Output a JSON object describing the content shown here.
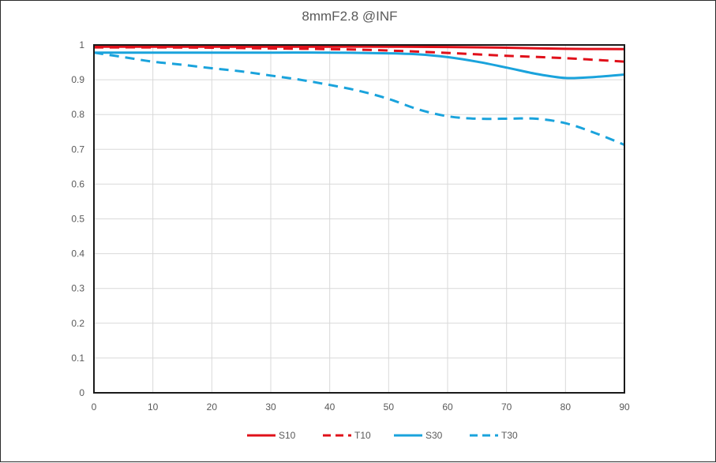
{
  "chart_data": {
    "type": "line",
    "title": "8mmF2.8 @INF",
    "xlabel": "",
    "ylabel": "",
    "xlim": [
      0,
      90
    ],
    "ylim": [
      0,
      1
    ],
    "xticks": [
      0,
      10,
      20,
      30,
      40,
      50,
      60,
      70,
      80,
      90
    ],
    "xtick_labels": [
      "0",
      "10",
      "20",
      "30",
      "40",
      "50",
      "60",
      "70",
      "80",
      "90"
    ],
    "yticks": [
      0,
      0.1,
      0.2,
      0.3,
      0.4,
      0.5,
      0.6,
      0.7,
      0.8,
      0.9,
      1
    ],
    "ytick_labels": [
      "0",
      "0.1",
      "0.2",
      "0.3",
      "0.4",
      "0.5",
      "0.6",
      "0.7",
      "0.8",
      "0.9",
      "1"
    ],
    "grid": true,
    "legend_position": "bottom",
    "series": [
      {
        "name": "S10",
        "color": "#e0101a",
        "style": "solid",
        "x": [
          0,
          10,
          20,
          30,
          40,
          50,
          60,
          70,
          80,
          90
        ],
        "y": [
          0.995,
          0.995,
          0.995,
          0.995,
          0.995,
          0.995,
          0.994,
          0.992,
          0.989,
          0.988
        ]
      },
      {
        "name": "T10",
        "color": "#e0101a",
        "style": "dashed",
        "x": [
          0,
          10,
          20,
          30,
          40,
          50,
          60,
          70,
          80,
          90
        ],
        "y": [
          0.993,
          0.993,
          0.992,
          0.99,
          0.988,
          0.984,
          0.977,
          0.969,
          0.962,
          0.952
        ]
      },
      {
        "name": "S30",
        "color": "#1aa3dc",
        "style": "solid",
        "x": [
          0,
          10,
          20,
          30,
          40,
          50,
          55,
          60,
          65,
          70,
          75,
          80,
          85,
          90
        ],
        "y": [
          0.978,
          0.978,
          0.978,
          0.978,
          0.978,
          0.976,
          0.973,
          0.965,
          0.952,
          0.935,
          0.917,
          0.905,
          0.908,
          0.915
        ]
      },
      {
        "name": "T30",
        "color": "#1aa3dc",
        "style": "dashed",
        "x": [
          0,
          5,
          10,
          15,
          20,
          25,
          30,
          35,
          40,
          45,
          50,
          55,
          60,
          65,
          70,
          75,
          80,
          85,
          90
        ],
        "y": [
          0.978,
          0.965,
          0.952,
          0.943,
          0.933,
          0.924,
          0.912,
          0.9,
          0.885,
          0.868,
          0.845,
          0.815,
          0.795,
          0.788,
          0.788,
          0.788,
          0.775,
          0.747,
          0.713
        ]
      }
    ]
  }
}
